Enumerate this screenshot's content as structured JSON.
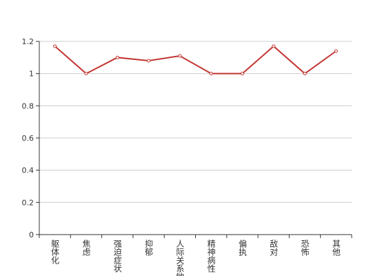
{
  "chart_data": {
    "type": "line",
    "categories": [
      "躯体化",
      "焦虑",
      "强迫症状",
      "抑郁",
      "人际关系敏感",
      "精神病性",
      "偏执",
      "敌对",
      "恐怖",
      "其他"
    ],
    "values": [
      1.17,
      1.0,
      1.1,
      1.08,
      1.11,
      1.0,
      1.0,
      1.17,
      1.0,
      1.14
    ],
    "color": "#c23531",
    "ylim": [
      0,
      1.2
    ],
    "yticks": [
      0,
      0.2,
      0.4,
      0.6,
      0.8,
      1,
      1.2
    ],
    "grid": true
  }
}
